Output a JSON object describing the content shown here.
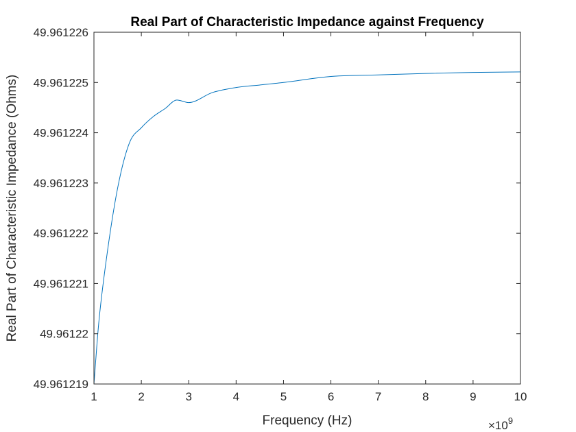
{
  "chart_data": {
    "type": "line",
    "title": "Real Part of Characteristic Impedance against Frequency",
    "xlabel": "Frequency (Hz)",
    "ylabel": "Real Part of Characteristic Impedance (Ohms)",
    "x_exponent_base": "×10",
    "x_exponent_power": "9",
    "xlim": [
      1,
      10
    ],
    "ylim": [
      49.961219,
      49.961226
    ],
    "x_ticks": [
      1,
      2,
      3,
      4,
      5,
      6,
      7,
      8,
      9,
      10
    ],
    "x_tick_labels": [
      "1",
      "2",
      "3",
      "4",
      "5",
      "6",
      "7",
      "8",
      "9",
      "10"
    ],
    "y_ticks": [
      49.961219,
      49.96122,
      49.961221,
      49.961222,
      49.961223,
      49.961224,
      49.961225,
      49.961226
    ],
    "y_tick_labels": [
      "49.961219",
      "49.96122",
      "49.961221",
      "49.961222",
      "49.961223",
      "49.961224",
      "49.961225",
      "49.961226"
    ],
    "grid": false,
    "line_color": "#0072BD",
    "axis_color": "#262626",
    "series": [
      {
        "x": [
          1,
          1.1,
          1.25,
          1.5,
          1.75,
          2,
          2.25,
          2.5,
          2.75,
          3,
          3.5,
          4,
          4.5,
          5,
          6,
          7,
          8,
          9,
          10
        ],
        "y": [
          49.961219,
          49.9612202,
          49.9612214,
          49.9612229,
          49.9612238,
          49.9612241,
          49.96122432,
          49.96122448,
          49.96122465,
          49.9612246,
          49.9612248,
          49.9612249,
          49.96122495,
          49.961225,
          49.96122512,
          49.96122515,
          49.96122518,
          49.9612252,
          49.96122521
        ]
      }
    ]
  }
}
